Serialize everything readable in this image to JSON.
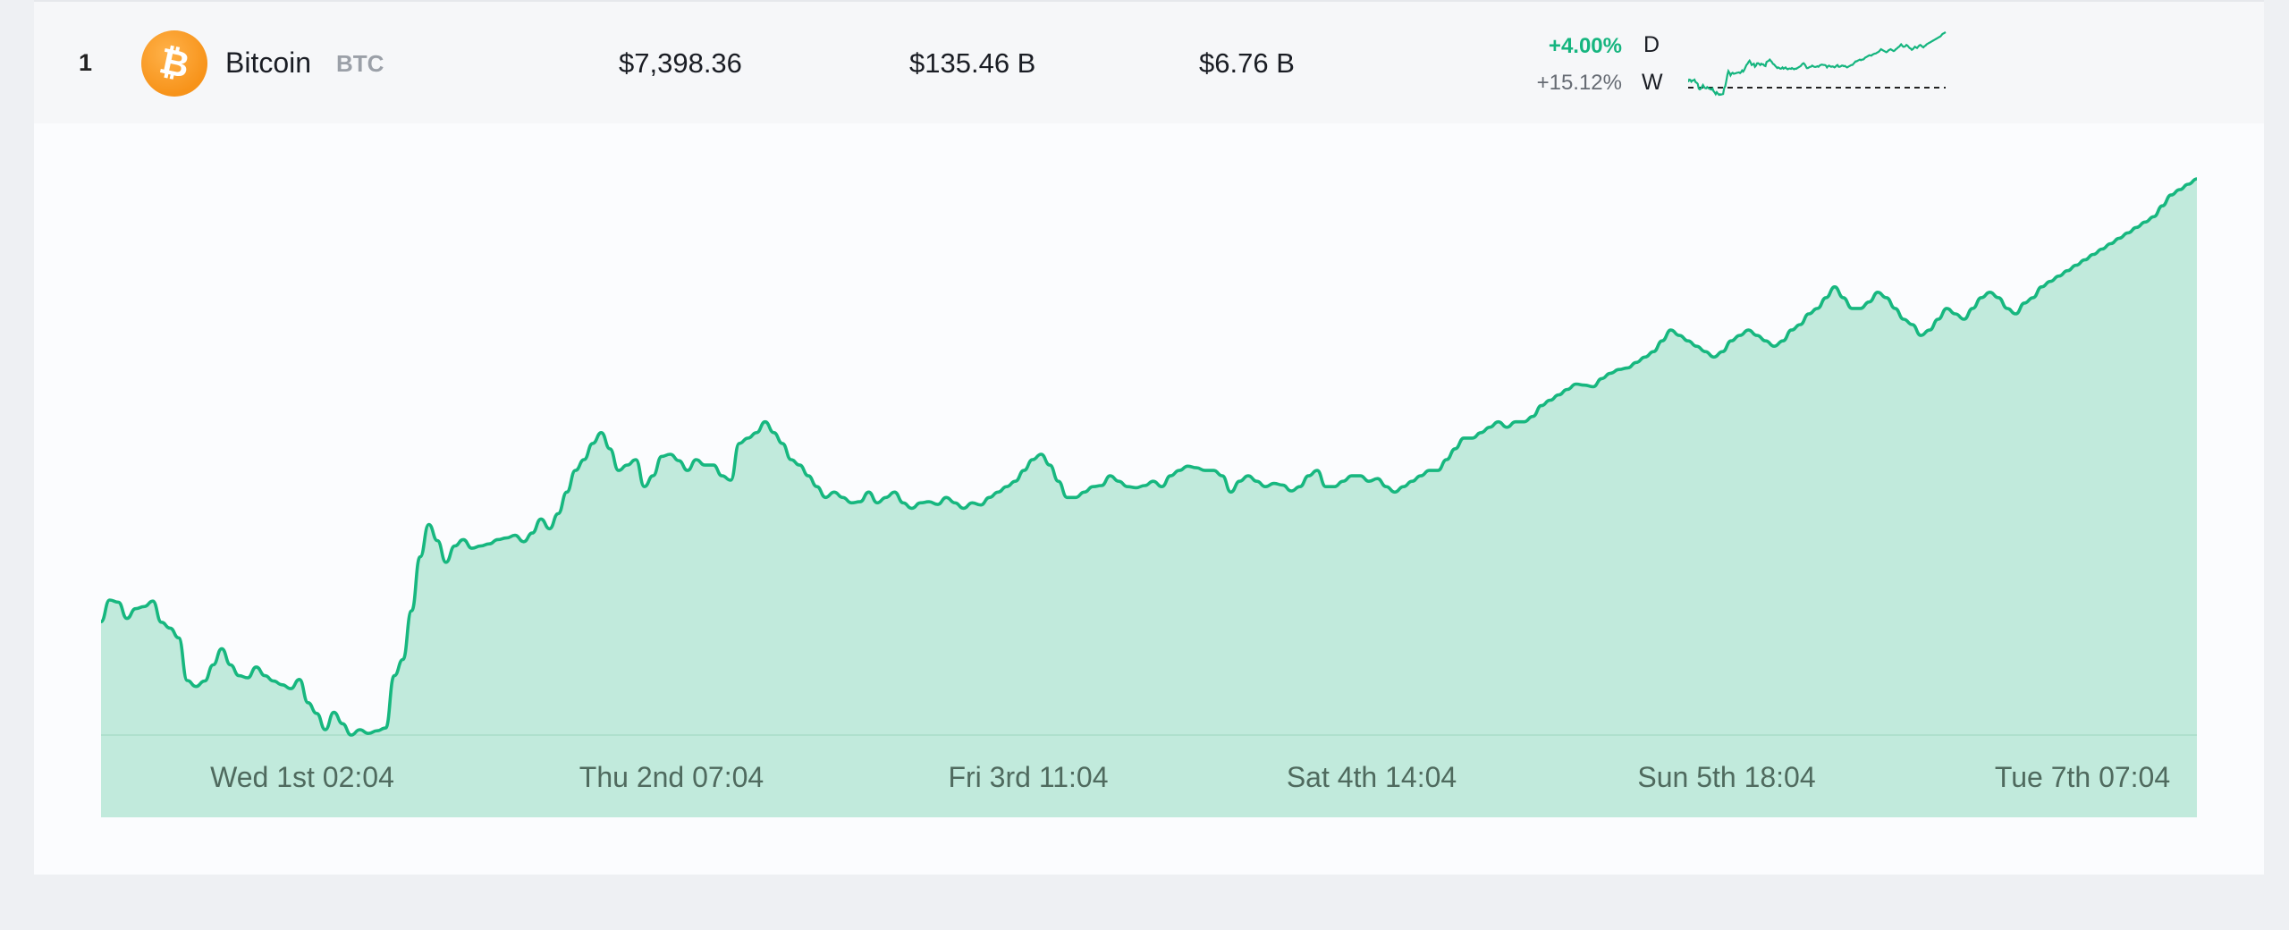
{
  "coin_row": {
    "rank": "1",
    "name": "Bitcoin",
    "symbol": "BTC",
    "price": "$7,398.36",
    "market_cap": "$135.46 B",
    "volume": "$6.76 B",
    "change_day": "+4.00%",
    "change_day_label": "D",
    "change_week": "+15.12%",
    "change_week_label": "W",
    "icon": "bitcoin-icon"
  },
  "colors": {
    "accent_green": "#16b57f",
    "area_fill": "#c1eadc",
    "bitcoin_orange": "#f7931a"
  },
  "chart_data": {
    "type": "area",
    "x_tick_labels": [
      "Wed 1st 02:04",
      "Thu 2nd 07:04",
      "Fri 3rd 11:04",
      "Sat 4th 14:04",
      "Sun 5th 18:04",
      "Tue 7th 07:04"
    ],
    "y_axis_labels_visible": false,
    "grid": false,
    "series": [
      {
        "values": [
          6600,
          6680,
          6672,
          6612,
          6648,
          6656,
          6676,
          6598,
          6576,
          6540,
          6382,
          6360,
          6380,
          6440,
          6500,
          6440,
          6400,
          6392,
          6432,
          6400,
          6380,
          6366,
          6352,
          6386,
          6300,
          6260,
          6200,
          6264,
          6222,
          6180,
          6200,
          6186,
          6196,
          6206,
          6400,
          6460,
          6640,
          6840,
          6960,
          6900,
          6820,
          6880,
          6904,
          6872,
          6880,
          6888,
          6904,
          6910,
          6920,
          6896,
          6928,
          6980,
          6944,
          7000,
          7080,
          7160,
          7200,
          7260,
          7300,
          7240,
          7160,
          7180,
          7200,
          7100,
          7140,
          7212,
          7220,
          7196,
          7160,
          7200,
          7180,
          7180,
          7140,
          7124,
          7260,
          7280,
          7300,
          7340,
          7300,
          7260,
          7200,
          7180,
          7140,
          7100,
          7060,
          7080,
          7060,
          7040,
          7044,
          7080,
          7040,
          7060,
          7080,
          7040,
          7020,
          7040,
          7044,
          7034,
          7060,
          7040,
          7020,
          7040,
          7032,
          7060,
          7080,
          7100,
          7120,
          7160,
          7200,
          7220,
          7180,
          7120,
          7060,
          7060,
          7080,
          7100,
          7104,
          7140,
          7120,
          7100,
          7096,
          7104,
          7120,
          7100,
          7140,
          7160,
          7176,
          7170,
          7160,
          7160,
          7140,
          7080,
          7120,
          7140,
          7120,
          7100,
          7112,
          7106,
          7084,
          7100,
          7140,
          7160,
          7100,
          7100,
          7120,
          7140,
          7140,
          7120,
          7130,
          7100,
          7080,
          7100,
          7120,
          7140,
          7160,
          7160,
          7200,
          7240,
          7280,
          7280,
          7300,
          7320,
          7340,
          7320,
          7340,
          7340,
          7360,
          7400,
          7420,
          7440,
          7460,
          7480,
          7476,
          7470,
          7500,
          7520,
          7534,
          7540,
          7560,
          7580,
          7600,
          7640,
          7680,
          7660,
          7640,
          7620,
          7600,
          7580,
          7600,
          7640,
          7660,
          7680,
          7660,
          7640,
          7620,
          7640,
          7680,
          7700,
          7740,
          7760,
          7800,
          7840,
          7800,
          7760,
          7760,
          7784,
          7820,
          7800,
          7760,
          7720,
          7700,
          7660,
          7680,
          7720,
          7760,
          7740,
          7720,
          7760,
          7800,
          7820,
          7800,
          7760,
          7740,
          7780,
          7800,
          7840,
          7860,
          7880,
          7900,
          7920,
          7940,
          7960,
          7980,
          8000,
          8020,
          8040,
          8060,
          8080,
          8100,
          8140,
          8180,
          8200,
          8220,
          8240
        ]
      }
    ]
  }
}
